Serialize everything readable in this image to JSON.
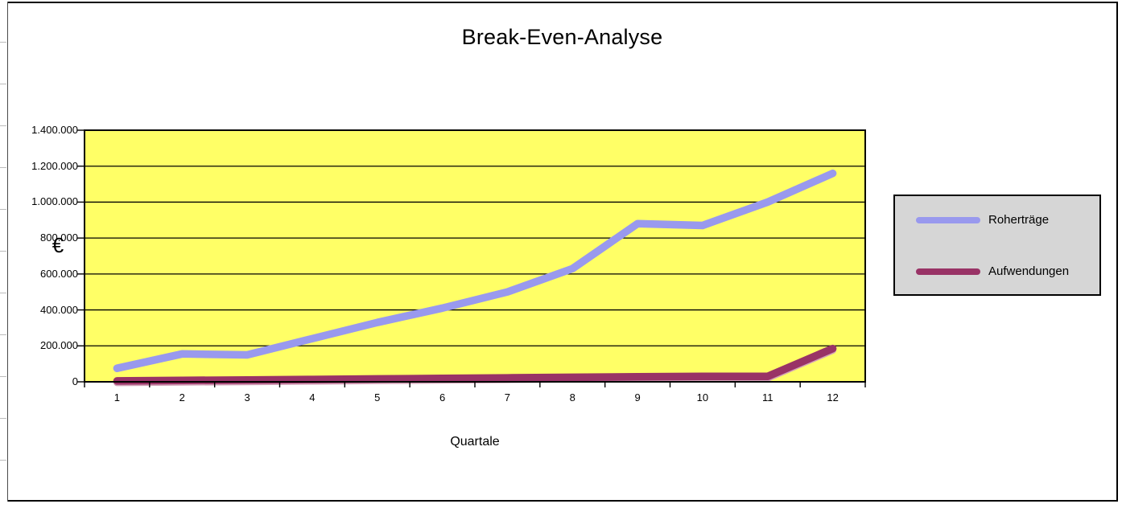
{
  "window": {
    "background": "#ffffff",
    "frame_color": "#000000"
  },
  "chart": {
    "plot_background": "#ffff66",
    "gridline_color": "#000000",
    "legend": {
      "background": "#d6d6d6",
      "border_color": "#000000"
    }
  },
  "chart_data": {
    "type": "line",
    "title": "Break-Even-Analyse",
    "xlabel": "Quartale",
    "ylabel": "€",
    "categories": [
      "1",
      "2",
      "3",
      "4",
      "5",
      "6",
      "7",
      "8",
      "9",
      "10",
      "11",
      "12"
    ],
    "series": [
      {
        "name": "Roherträge",
        "color": "#9999ee",
        "values": [
          75000,
          155000,
          150000,
          240000,
          330000,
          410000,
          500000,
          630000,
          880000,
          870000,
          1000000,
          1160000
        ]
      },
      {
        "name": "Aufwendungen",
        "color": "#993366",
        "edge_highlight": "#d2a0b6",
        "values": [
          5000,
          8000,
          10000,
          13000,
          16000,
          19000,
          22000,
          25000,
          28000,
          30000,
          30000,
          185000
        ]
      }
    ],
    "ylim": [
      0,
      1400000
    ],
    "ytick_step": 200000,
    "ytick_labels": [
      "0",
      "200.000",
      "400.000",
      "600.000",
      "800.000",
      "1.000.000",
      "1.200.000",
      "1.400.000"
    ],
    "grid": true,
    "legend_position": "right"
  }
}
